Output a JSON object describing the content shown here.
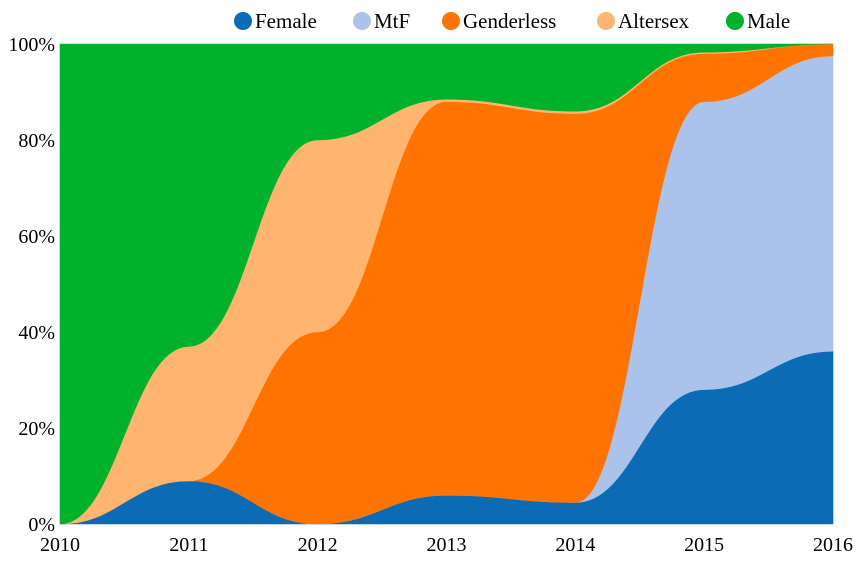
{
  "chart_data": {
    "type": "area",
    "stacked": true,
    "normalized": true,
    "x": [
      2010,
      2011,
      2012,
      2013,
      2014,
      2015,
      2016
    ],
    "x_tick_labels": [
      "2010",
      "2011",
      "2012",
      "2013",
      "2014",
      "2015",
      "2016"
    ],
    "y_tick_labels": [
      "0%",
      "20%",
      "40%",
      "60%",
      "80%",
      "100%"
    ],
    "ylim": [
      0,
      100
    ],
    "y_unit": "%",
    "legend_position": "top",
    "grid": false,
    "series": [
      {
        "name": "Female",
        "color": "#0b6bb5",
        "values": [
          0,
          9,
          0,
          6,
          4.5,
          28,
          36
        ]
      },
      {
        "name": "MtF",
        "color": "#abc3ea",
        "values": [
          0,
          0,
          0,
          0,
          0,
          60,
          61.5
        ]
      },
      {
        "name": "Genderless",
        "color": "#ff7300",
        "values": [
          0,
          0,
          40,
          82,
          81,
          10,
          2.5
        ]
      },
      {
        "name": "Altersex",
        "color": "#ffb570",
        "values": [
          0,
          28,
          40,
          0.5,
          0.5,
          0.3,
          0
        ]
      },
      {
        "name": "Male",
        "color": "#00b22b",
        "values": [
          100,
          63,
          20,
          11.5,
          14,
          1.7,
          0
        ]
      }
    ]
  }
}
